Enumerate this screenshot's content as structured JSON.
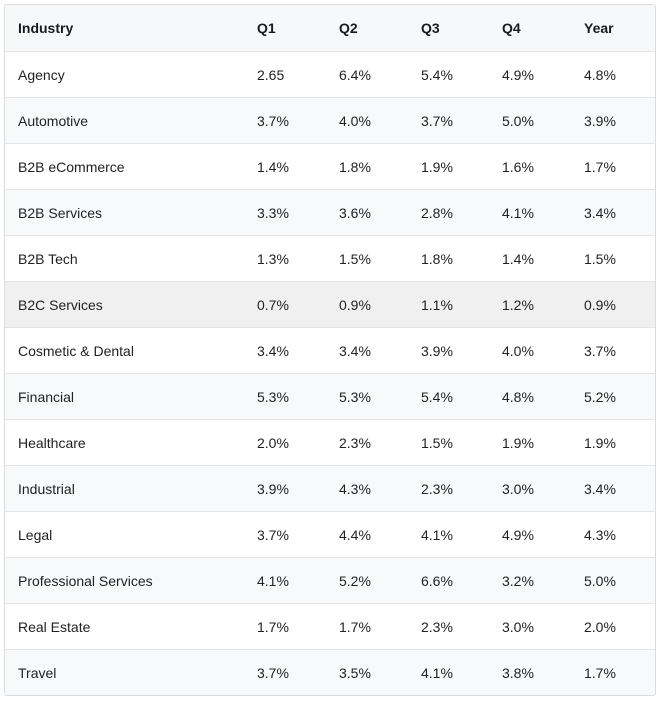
{
  "table": {
    "headers": [
      "Industry",
      "Q1",
      "Q2",
      "Q3",
      "Q4",
      "Year"
    ],
    "highlighted_row": 5,
    "rows": [
      [
        "Agency",
        "2.65",
        "6.4%",
        "5.4%",
        "4.9%",
        "4.8%"
      ],
      [
        "Automotive",
        "3.7%",
        "4.0%",
        "3.7%",
        "5.0%",
        "3.9%"
      ],
      [
        "B2B eCommerce",
        "1.4%",
        "1.8%",
        "1.9%",
        "1.6%",
        "1.7%"
      ],
      [
        "B2B Services",
        "3.3%",
        "3.6%",
        "2.8%",
        "4.1%",
        "3.4%"
      ],
      [
        "B2B Tech",
        "1.3%",
        "1.5%",
        "1.8%",
        "1.4%",
        "1.5%"
      ],
      [
        "B2C Services",
        "0.7%",
        "0.9%",
        "1.1%",
        "1.2%",
        "0.9%"
      ],
      [
        "Cosmetic & Dental",
        "3.4%",
        "3.4%",
        "3.9%",
        "4.0%",
        "3.7%"
      ],
      [
        "Financial",
        "5.3%",
        "5.3%",
        "5.4%",
        "4.8%",
        "5.2%"
      ],
      [
        "Healthcare",
        "2.0%",
        "2.3%",
        "1.5%",
        "1.9%",
        "1.9%"
      ],
      [
        "Industrial",
        "3.9%",
        "4.3%",
        "2.3%",
        "3.0%",
        "3.4%"
      ],
      [
        "Legal",
        "3.7%",
        "4.4%",
        "4.1%",
        "4.9%",
        "4.3%"
      ],
      [
        "Professional Services",
        "4.1%",
        "5.2%",
        "6.6%",
        "3.2%",
        "5.0%"
      ],
      [
        "Real Estate",
        "1.7%",
        "1.7%",
        "2.3%",
        "3.0%",
        "2.0%"
      ],
      [
        "Travel",
        "3.7%",
        "3.5%",
        "4.1%",
        "3.8%",
        "1.7%"
      ]
    ]
  }
}
